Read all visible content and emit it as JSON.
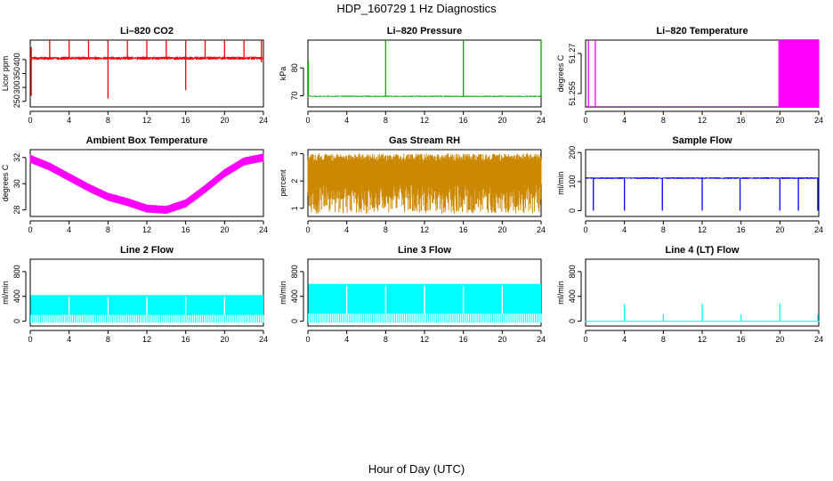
{
  "figure": {
    "title": "HDP_160729  1 Hz Diagnostics",
    "xlabel": "Hour of Day (UTC)"
  },
  "chart_data": [
    {
      "type": "line",
      "title": "Li–820 CO2",
      "ylabel": "Licor ppm",
      "color": "#ff0000",
      "xlim": [
        0,
        24
      ],
      "ylim": [
        230,
        470
      ],
      "xticks": [
        0,
        4,
        8,
        12,
        16,
        20,
        24
      ],
      "yticks": [
        250,
        300,
        350,
        400
      ],
      "baseline": 405,
      "noise": 6,
      "events": [
        [
          0.1,
          445,
          270
        ],
        [
          2,
          470,
          null
        ],
        [
          4,
          470,
          null
        ],
        [
          6,
          470,
          null
        ],
        [
          8,
          470,
          260
        ],
        [
          10,
          470,
          null
        ],
        [
          12,
          470,
          null
        ],
        [
          14,
          470,
          null
        ],
        [
          16,
          470,
          290
        ],
        [
          18,
          470,
          null
        ],
        [
          20,
          470,
          null
        ],
        [
          22,
          470,
          null
        ],
        [
          23.8,
          470,
          390
        ]
      ]
    },
    {
      "type": "line",
      "title": "Li–820 Pressure",
      "ylabel": "kPa",
      "color": "#00aa00",
      "xlim": [
        0,
        24
      ],
      "ylim": [
        66,
        90
      ],
      "xticks": [
        0,
        4,
        8,
        12,
        16,
        20,
        24
      ],
      "yticks": [
        70,
        80
      ],
      "baseline": 69.8,
      "noise": 0.25,
      "events": [
        [
          0.05,
          82.5,
          null
        ],
        [
          8,
          90,
          null
        ],
        [
          16,
          90,
          null
        ],
        [
          24,
          90,
          null
        ]
      ]
    },
    {
      "type": "line",
      "title": "Li–820 Temperature",
      "ylabel": "degrees C",
      "color": "#ff00ff",
      "xlim": [
        0,
        24
      ],
      "ylim": [
        51.25,
        51.275
      ],
      "xticks": [
        0,
        4,
        8,
        12,
        16,
        20,
        24
      ],
      "yticks": [
        51.255,
        51.27
      ],
      "baseline": 51.25,
      "noise": 0,
      "dense_from": 20,
      "dense_to": 24,
      "events": [
        [
          0.3,
          51.275,
          null
        ],
        [
          1,
          51.275,
          null
        ],
        [
          19.9,
          51.275,
          null
        ],
        [
          20.5,
          51.275,
          null
        ],
        [
          21.2,
          51.275,
          null
        ],
        [
          21.9,
          51.275,
          null
        ]
      ]
    },
    {
      "type": "line",
      "title": "Ambient Box Temperature",
      "ylabel": "degrees C",
      "color": "#ff00ff",
      "xlim": [
        0,
        24
      ],
      "ylim": [
        27.5,
        32.6
      ],
      "xticks": [
        0,
        4,
        8,
        12,
        16,
        20,
        24
      ],
      "yticks": [
        28,
        30,
        32
      ],
      "curve": [
        [
          0,
          31.9
        ],
        [
          2,
          31.3
        ],
        [
          4,
          30.5
        ],
        [
          6,
          29.7
        ],
        [
          8,
          29.0
        ],
        [
          10,
          28.6
        ],
        [
          12,
          28.1
        ],
        [
          14,
          28.0
        ],
        [
          16,
          28.5
        ],
        [
          18,
          29.6
        ],
        [
          20,
          30.8
        ],
        [
          22,
          31.7
        ],
        [
          24,
          32.0
        ]
      ],
      "noise": 0.3
    },
    {
      "type": "line",
      "title": "Gas Stream RH",
      "ylabel": "percent",
      "color": "#cc8800",
      "xlim": [
        0,
        24
      ],
      "ylim": [
        0.7,
        3.15
      ],
      "xticks": [
        0,
        4,
        8,
        12,
        16,
        20,
        24
      ],
      "yticks": [
        1.0,
        2.0,
        3.0
      ],
      "band_top": 2.8,
      "band_bottom": 1.3,
      "min": 0.8
    },
    {
      "type": "line",
      "title": "Sample Flow",
      "ylabel": "ml/min",
      "color": "#0000ff",
      "xlim": [
        0,
        24
      ],
      "ylim": [
        -20,
        210
      ],
      "xticks": [
        0,
        4,
        8,
        12,
        16,
        20,
        24
      ],
      "yticks": [
        0,
        100,
        200
      ],
      "baseline": 112,
      "noise": 3,
      "events": [
        [
          0.8,
          112,
          0
        ],
        [
          4,
          112,
          0
        ],
        [
          7.9,
          112,
          0
        ],
        [
          12,
          112,
          0
        ],
        [
          15.9,
          112,
          0
        ],
        [
          20,
          112,
          0
        ],
        [
          21.9,
          112,
          0
        ],
        [
          23.9,
          112,
          0
        ]
      ]
    },
    {
      "type": "line",
      "title": "Line 2 Flow",
      "ylabel": "ml/min",
      "color": "#00ffff",
      "xlim": [
        0,
        24
      ],
      "ylim": [
        -80,
        1000
      ],
      "xticks": [
        0,
        4,
        8,
        12,
        16,
        20,
        24
      ],
      "yticks": [
        0,
        400,
        800
      ],
      "band_top": 420,
      "band_bottom": 100,
      "start": 0.05,
      "end": 24,
      "gaps": [
        4,
        8,
        12,
        16,
        20
      ]
    },
    {
      "type": "line",
      "title": "Line 3 Flow",
      "ylabel": "ml/min",
      "color": "#00ffff",
      "xlim": [
        0,
        24
      ],
      "ylim": [
        -80,
        1000
      ],
      "xticks": [
        0,
        4,
        8,
        12,
        16,
        20,
        24
      ],
      "yticks": [
        0,
        400,
        800
      ],
      "band_top": 600,
      "band_bottom": 120,
      "start": 0.05,
      "end": 24,
      "gaps": [
        4,
        8,
        12,
        16,
        20
      ]
    },
    {
      "type": "line",
      "title": "Line 4 (LT) Flow",
      "ylabel": "ml/min",
      "color": "#00ffff",
      "xlim": [
        0,
        24
      ],
      "ylim": [
        -80,
        1000
      ],
      "xticks": [
        0,
        4,
        8,
        12,
        16,
        20,
        24
      ],
      "yticks": [
        0,
        400,
        800
      ],
      "baseline": 5,
      "noise": 0,
      "events": [
        [
          4,
          280,
          null
        ],
        [
          8,
          110,
          null
        ],
        [
          12,
          280,
          null
        ],
        [
          16,
          110,
          null
        ],
        [
          20,
          280,
          null
        ],
        [
          23.9,
          110,
          null
        ]
      ]
    }
  ]
}
